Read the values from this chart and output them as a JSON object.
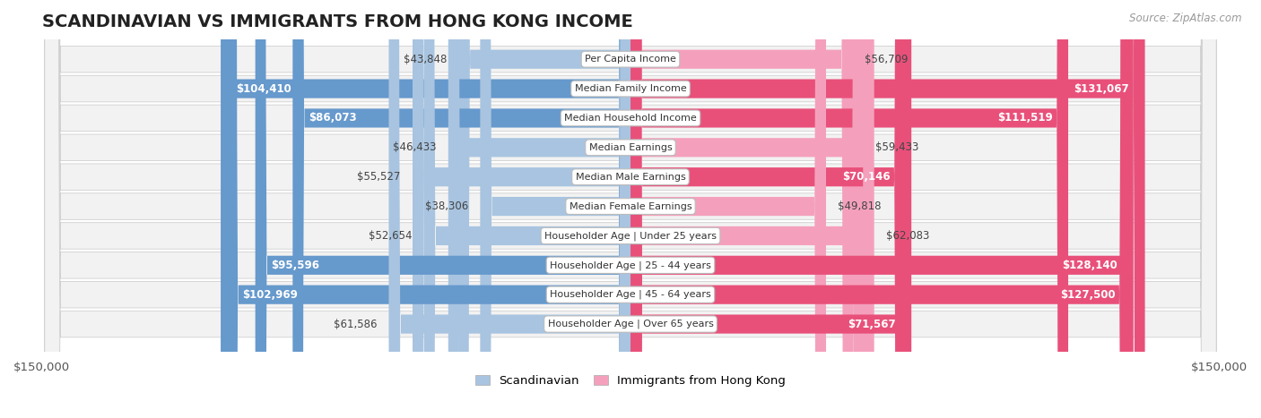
{
  "title": "SCANDINAVIAN VS IMMIGRANTS FROM HONG KONG INCOME",
  "source": "Source: ZipAtlas.com",
  "categories": [
    "Per Capita Income",
    "Median Family Income",
    "Median Household Income",
    "Median Earnings",
    "Median Male Earnings",
    "Median Female Earnings",
    "Householder Age | Under 25 years",
    "Householder Age | 25 - 44 years",
    "Householder Age | 45 - 64 years",
    "Householder Age | Over 65 years"
  ],
  "scandinavian": [
    43848,
    104410,
    86073,
    46433,
    55527,
    38306,
    52654,
    95596,
    102969,
    61586
  ],
  "hong_kong": [
    56709,
    131067,
    111519,
    59433,
    70146,
    49818,
    62083,
    128140,
    127500,
    71567
  ],
  "scandinavian_labels": [
    "$43,848",
    "$104,410",
    "$86,073",
    "$46,433",
    "$55,527",
    "$38,306",
    "$52,654",
    "$95,596",
    "$102,969",
    "$61,586"
  ],
  "hong_kong_labels": [
    "$56,709",
    "$131,067",
    "$111,519",
    "$59,433",
    "$70,146",
    "$49,818",
    "$62,083",
    "$128,140",
    "$127,500",
    "$71,567"
  ],
  "max_val": 150000,
  "scand_color_light": "#a8c4e0",
  "scand_color_dark": "#6699cc",
  "hk_color_light": "#f4a0bc",
  "hk_color_dark": "#e8507a",
  "inside_label_threshold": 65000,
  "label_fontsize": 8.5,
  "cat_fontsize": 8,
  "title_fontsize": 14,
  "figsize": [
    14.06,
    4.67
  ],
  "dpi": 100
}
